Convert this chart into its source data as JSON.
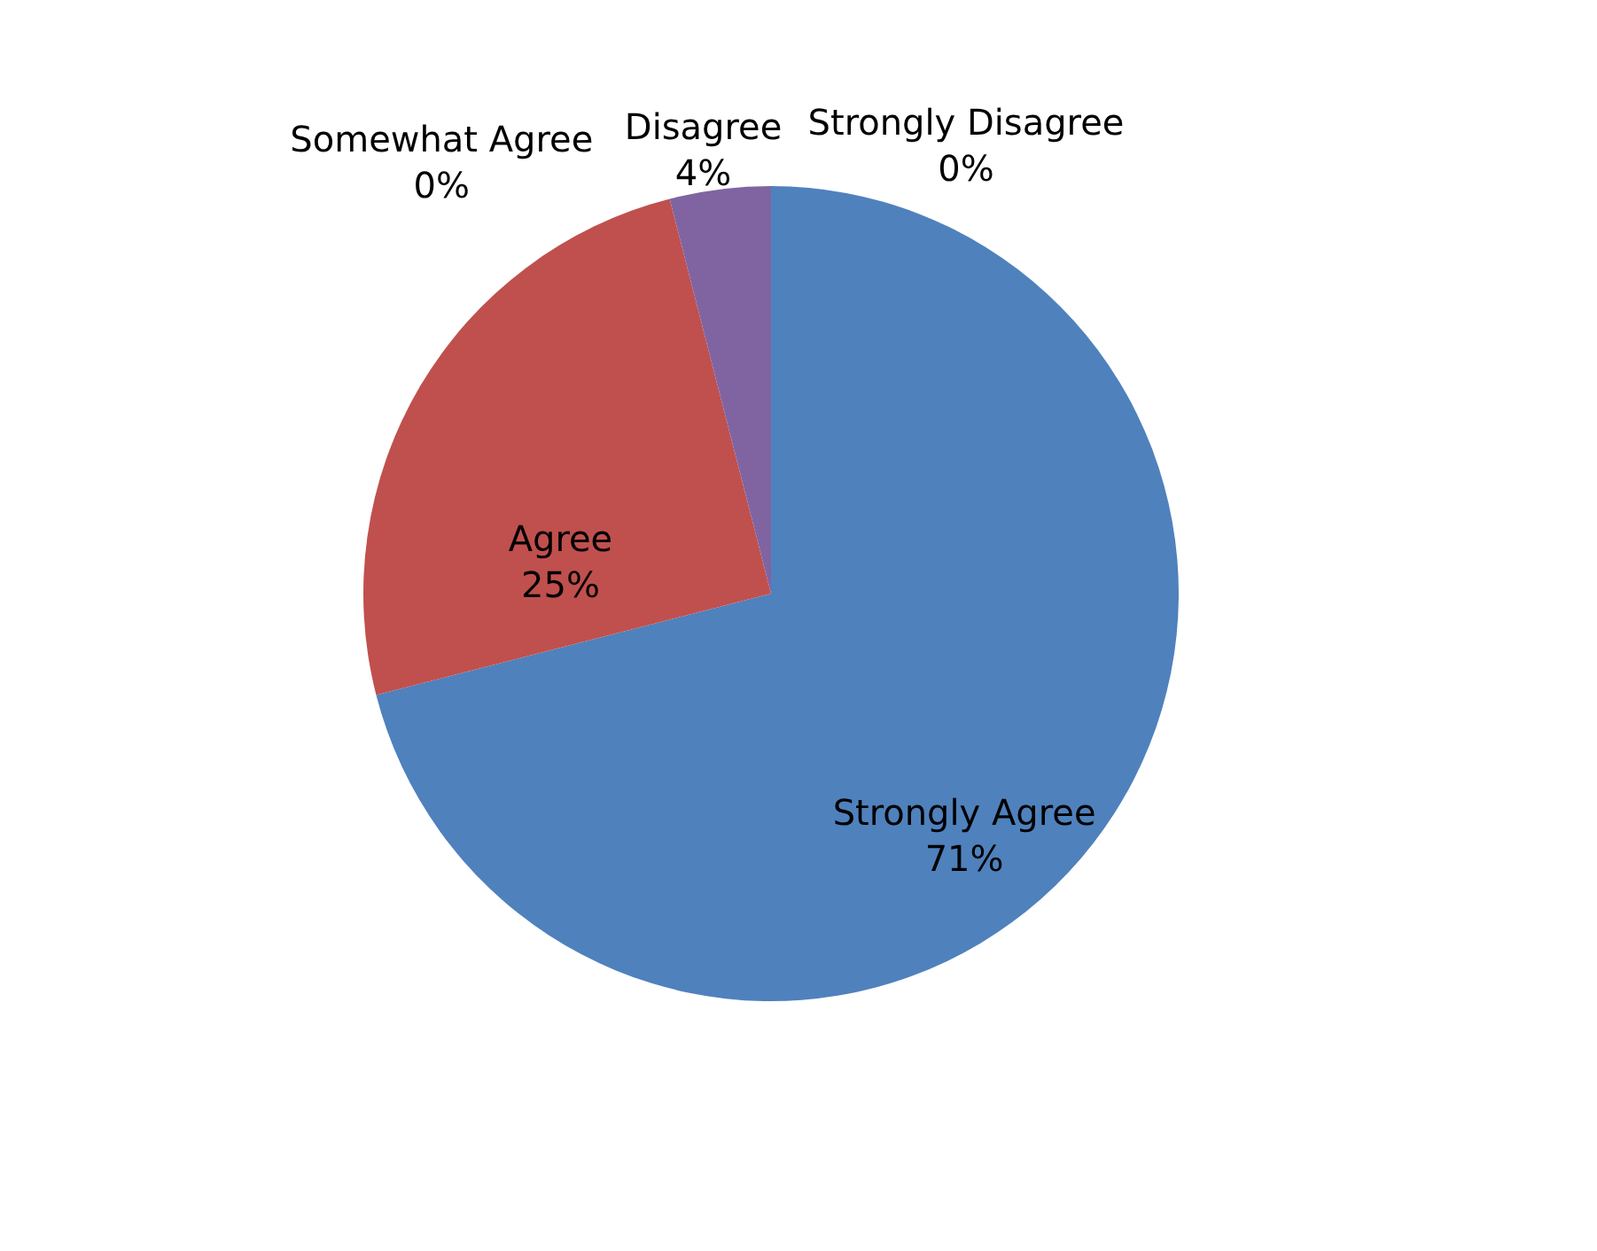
{
  "chart_data": {
    "type": "pie",
    "categories": [
      "Strongly Agree",
      "Agree",
      "Somewhat Agree",
      "Disagree",
      "Strongly Disagree"
    ],
    "values": [
      71,
      25,
      0,
      4,
      0
    ],
    "colors": [
      "#4f81bd",
      "#c0504d",
      "#9bbb59",
      "#8064a2",
      "#4bacc6"
    ],
    "value_labels": [
      "71%",
      "25%",
      "0%",
      "4%",
      "0%"
    ]
  }
}
